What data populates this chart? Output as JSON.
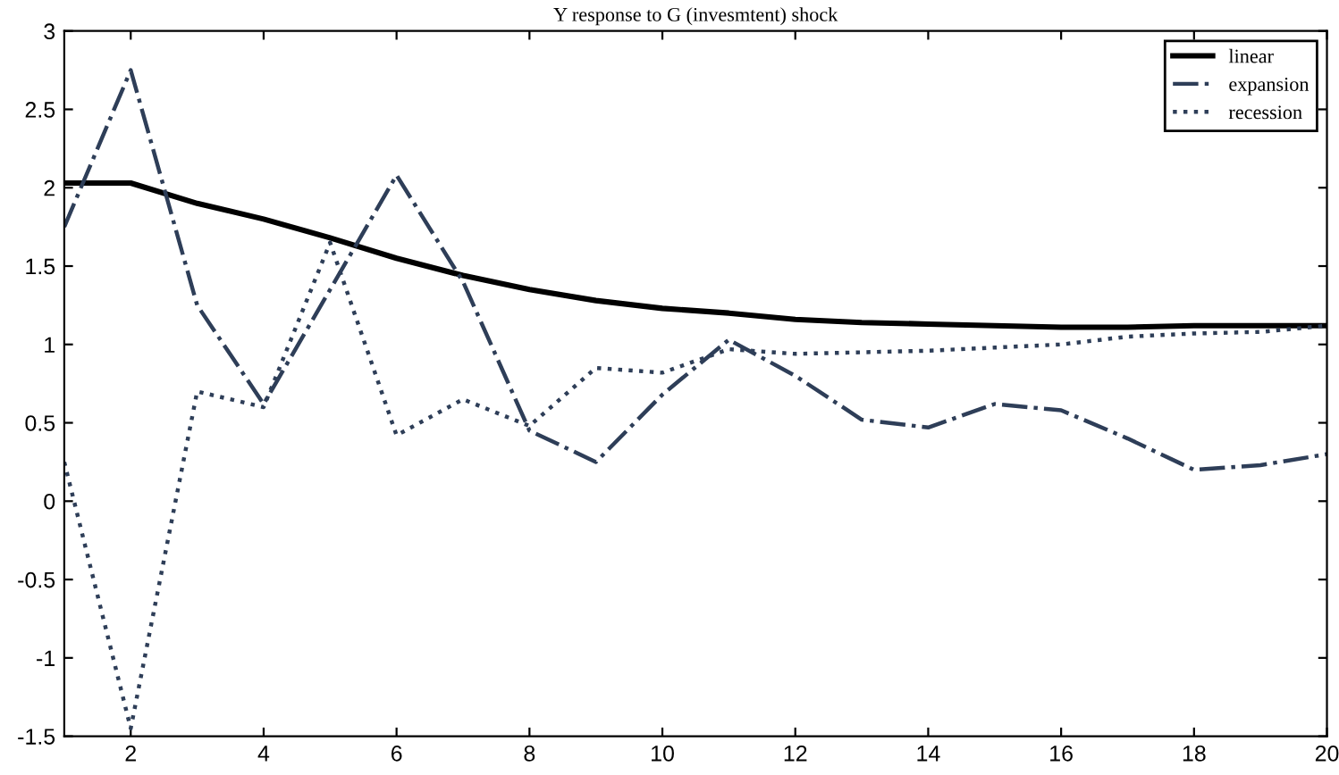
{
  "chart_data": {
    "type": "line",
    "title": "Y response to G (invesmtent) shock",
    "x": [
      1,
      2,
      3,
      4,
      5,
      6,
      7,
      8,
      9,
      10,
      11,
      12,
      13,
      14,
      15,
      16,
      17,
      18,
      19,
      20
    ],
    "series": [
      {
        "name": "linear",
        "color": "#000000",
        "line_style": "solid",
        "values": [
          2.03,
          2.03,
          1.9,
          1.8,
          1.68,
          1.55,
          1.44,
          1.35,
          1.28,
          1.23,
          1.2,
          1.16,
          1.14,
          1.13,
          1.12,
          1.11,
          1.11,
          1.12,
          1.12,
          1.12
        ]
      },
      {
        "name": "expansion",
        "color": "#2e3e58",
        "line_style": "dashdot",
        "values": [
          1.75,
          2.75,
          1.25,
          0.62,
          1.35,
          2.08,
          1.4,
          0.45,
          0.25,
          0.68,
          1.03,
          0.8,
          0.52,
          0.47,
          0.62,
          0.58,
          0.4,
          0.2,
          0.23,
          0.3
        ]
      },
      {
        "name": "recession",
        "color": "#2e3e58",
        "line_style": "dotted",
        "values": [
          0.25,
          -1.45,
          0.7,
          0.6,
          1.65,
          0.42,
          0.65,
          0.48,
          0.85,
          0.82,
          0.97,
          0.94,
          0.95,
          0.96,
          0.98,
          1.0,
          1.05,
          1.07,
          1.08,
          1.12
        ]
      }
    ],
    "xlim": [
      1,
      20
    ],
    "xticks": [
      2,
      4,
      6,
      8,
      10,
      12,
      14,
      16,
      18,
      20
    ],
    "ylim": [
      -1.5,
      3
    ],
    "yticks": [
      -1.5,
      -1,
      -0.5,
      0,
      0.5,
      1,
      1.5,
      2,
      2.5,
      3
    ],
    "grid": false,
    "legend": "top right"
  }
}
